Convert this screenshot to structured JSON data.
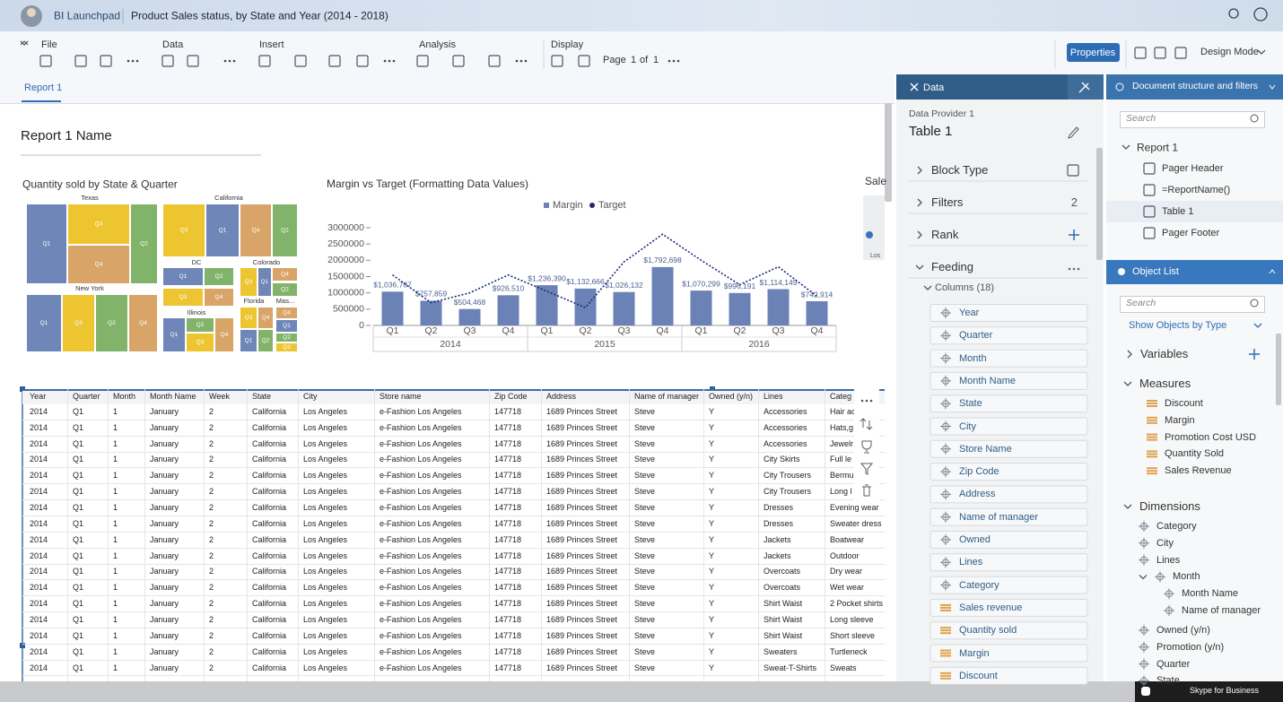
{
  "header": {
    "app": "BI Launchpad",
    "title": "Product Sales status, by State and Year (2014 - 2018)"
  },
  "toolbar": {
    "groups": [
      "File",
      "Data",
      "Insert",
      "Analysis",
      "Display"
    ],
    "page": {
      "label": "Page",
      "current": 1,
      "of": "of",
      "total": 1
    },
    "properties": "Properties",
    "mode": "Design Mode"
  },
  "tab": "Report 1",
  "report_title": "Report 1 Name",
  "treemap": {
    "title": "Quantity sold by State & Quarter",
    "colors": {
      "Q1": "#6f86b8",
      "Q2": "#82b36b",
      "Q3": "#edc531",
      "Q4": "#d9a467"
    },
    "groups": [
      {
        "name": "Texas",
        "cells": [
          "Q1",
          "Q3",
          "Q4",
          "Q2"
        ]
      },
      {
        "name": "New York",
        "cells": [
          "Q1",
          "Q3",
          "Q2",
          "Q4"
        ]
      },
      {
        "name": "California",
        "cells": [
          "Q3",
          "Q1",
          "Q4",
          "Q2"
        ]
      },
      {
        "name": "DC",
        "cells": [
          "Q1",
          "Q2",
          "Q3",
          "Q4"
        ]
      },
      {
        "name": "Colorado",
        "cells": [
          "Q3",
          "Q1",
          "Q4",
          "Q2"
        ]
      },
      {
        "name": "Illinois",
        "cells": [
          "Q1",
          "Q2",
          "Q3",
          "Q4"
        ]
      },
      {
        "name": "Florida",
        "cells": [
          "Q3",
          "Q4",
          "Q1",
          "Q2"
        ]
      },
      {
        "name": "Mas...",
        "cells": [
          "Q4",
          "Q1",
          "Q2",
          "Q3"
        ]
      }
    ]
  },
  "chart_data": {
    "type": "bar",
    "title": "Margin vs Target (Formatting Data Values)",
    "categories": [
      "Q1",
      "Q2",
      "Q3",
      "Q4",
      "Q1",
      "Q2",
      "Q3",
      "Q4",
      "Q1",
      "Q2",
      "Q3",
      "Q4"
    ],
    "groups": [
      "2014",
      "2015",
      "2016"
    ],
    "series": [
      {
        "name": "Margin",
        "type": "bar",
        "color": "#6a82b6",
        "values": [
          1036787,
          757859,
          504468,
          926510,
          1236390,
          1132666,
          1026132,
          1792698,
          1070299,
          996191,
          1114149,
          742914
        ],
        "value_labels": [
          "$1,036,787",
          "$757,859",
          "$504,468",
          "$926,510",
          "$1,236,390",
          "$1,132,666",
          "$1,026,132",
          "$1,792,698",
          "$1,070,299",
          "$996,191",
          "$1,114,149",
          "$742,914"
        ]
      },
      {
        "name": "Target",
        "type": "line",
        "color": "#1c2a78",
        "values": [
          1550000,
          700000,
          1000000,
          1550000,
          1050000,
          550000,
          1950000,
          2800000,
          2000000,
          1250000,
          1800000,
          900000
        ]
      }
    ],
    "ylim": [
      0,
      3000000
    ],
    "yticks": [
      0,
      500000,
      1000000,
      1500000,
      2000000,
      2500000,
      3000000
    ],
    "grid": false,
    "legend": "top"
  },
  "partial_chart": {
    "title": "Sale",
    "label": "Los"
  },
  "table": {
    "columns": [
      "Year",
      "Quarter",
      "Month",
      "Month Name",
      "Week",
      "State",
      "City",
      "Store name",
      "Zip Code",
      "Address",
      "Name of manager",
      "Owned (y/n)",
      "Lines",
      "Categ"
    ],
    "rows": [
      [
        2014,
        "Q1",
        1,
        "January",
        2,
        "California",
        "Los Angeles",
        "e-Fashion Los Angeles",
        147718,
        "1689 Princes Street",
        "Steve",
        "Y",
        "Accessories",
        "Hair ac"
      ],
      [
        2014,
        "Q1",
        1,
        "January",
        2,
        "California",
        "Los Angeles",
        "e-Fashion Los Angeles",
        147718,
        "1689 Princes Street",
        "Steve",
        "Y",
        "Accessories",
        "Hats,g"
      ],
      [
        2014,
        "Q1",
        1,
        "January",
        2,
        "California",
        "Los Angeles",
        "e-Fashion Los Angeles",
        147718,
        "1689 Princes Street",
        "Steve",
        "Y",
        "Accessories",
        "Jewelr"
      ],
      [
        2014,
        "Q1",
        1,
        "January",
        2,
        "California",
        "Los Angeles",
        "e-Fashion Los Angeles",
        147718,
        "1689 Princes Street",
        "Steve",
        "Y",
        "City Skirts",
        "Full le"
      ],
      [
        2014,
        "Q1",
        1,
        "January",
        2,
        "California",
        "Los Angeles",
        "e-Fashion Los Angeles",
        147718,
        "1689 Princes Street",
        "Steve",
        "Y",
        "City Trousers",
        "Bermu"
      ],
      [
        2014,
        "Q1",
        1,
        "January",
        2,
        "California",
        "Los Angeles",
        "e-Fashion Los Angeles",
        147718,
        "1689 Princes Street",
        "Steve",
        "Y",
        "City Trousers",
        "Long l"
      ],
      [
        2014,
        "Q1",
        1,
        "January",
        2,
        "California",
        "Los Angeles",
        "e-Fashion Los Angeles",
        147718,
        "1689 Princes Street",
        "Steve",
        "Y",
        "Dresses",
        "Evening wear"
      ],
      [
        2014,
        "Q1",
        1,
        "January",
        2,
        "California",
        "Los Angeles",
        "e-Fashion Los Angeles",
        147718,
        "1689 Princes Street",
        "Steve",
        "Y",
        "Dresses",
        "Sweater dress"
      ],
      [
        2014,
        "Q1",
        1,
        "January",
        2,
        "California",
        "Los Angeles",
        "e-Fashion Los Angeles",
        147718,
        "1689 Princes Street",
        "Steve",
        "Y",
        "Jackets",
        "Boatwear"
      ],
      [
        2014,
        "Q1",
        1,
        "January",
        2,
        "California",
        "Los Angeles",
        "e-Fashion Los Angeles",
        147718,
        "1689 Princes Street",
        "Steve",
        "Y",
        "Jackets",
        "Outdoor"
      ],
      [
        2014,
        "Q1",
        1,
        "January",
        2,
        "California",
        "Los Angeles",
        "e-Fashion Los Angeles",
        147718,
        "1689 Princes Street",
        "Steve",
        "Y",
        "Overcoats",
        "Dry wear"
      ],
      [
        2014,
        "Q1",
        1,
        "January",
        2,
        "California",
        "Los Angeles",
        "e-Fashion Los Angeles",
        147718,
        "1689 Princes Street",
        "Steve",
        "Y",
        "Overcoats",
        "Wet wear"
      ],
      [
        2014,
        "Q1",
        1,
        "January",
        2,
        "California",
        "Los Angeles",
        "e-Fashion Los Angeles",
        147718,
        "1689 Princes Street",
        "Steve",
        "Y",
        "Shirt Waist",
        "2 Pocket shirts"
      ],
      [
        2014,
        "Q1",
        1,
        "January",
        2,
        "California",
        "Los Angeles",
        "e-Fashion Los Angeles",
        147718,
        "1689 Princes Street",
        "Steve",
        "Y",
        "Shirt Waist",
        "Long sleeve"
      ],
      [
        2014,
        "Q1",
        1,
        "January",
        2,
        "California",
        "Los Angeles",
        "e-Fashion Los Angeles",
        147718,
        "1689 Princes Street",
        "Steve",
        "Y",
        "Shirt Waist",
        "Short sleeve"
      ],
      [
        2014,
        "Q1",
        1,
        "January",
        2,
        "California",
        "Los Angeles",
        "e-Fashion Los Angeles",
        147718,
        "1689 Princes Street",
        "Steve",
        "Y",
        "Sweaters",
        "Turtleneck"
      ],
      [
        2014,
        "Q1",
        1,
        "January",
        2,
        "California",
        "Los Angeles",
        "e-Fashion Los Angeles",
        147718,
        "1689 Princes Street",
        "Steve",
        "Y",
        "Sweat-T-Shirts",
        "Sweats"
      ]
    ]
  },
  "data_panel": {
    "title": "Data",
    "provider": "Data Provider 1",
    "block": "Table 1",
    "sections": [
      "Block Type",
      "Filters",
      "Rank",
      "Feeding"
    ],
    "filters_count": 2,
    "columns_label": "Columns (18)",
    "dimensions": [
      "Year",
      "Quarter",
      "Month",
      "Month Name",
      "State",
      "City",
      "Store Name",
      "Zip Code",
      "Address",
      "Name of manager",
      "Owned",
      "Lines",
      "Category"
    ],
    "measures": [
      "Sales revenue",
      "Quantity sold",
      "Margin",
      "Discount"
    ]
  },
  "structure_panel": {
    "title": "Document structure and filters",
    "search": "Search",
    "tree": {
      "root": "Report 1",
      "children": [
        "Pager Header",
        "=ReportName()",
        "Table 1",
        "Pager Footer"
      ]
    }
  },
  "object_list": {
    "title": "Object List",
    "search": "Search",
    "filter": "Show Objects by Type",
    "variables": "Variables",
    "measures_label": "Measures",
    "measures": [
      "Discount",
      "Margin",
      "Promotion Cost USD",
      "Quantity Sold",
      "Sales Revenue"
    ],
    "dimensions_label": "Dimensions",
    "dimensions": [
      "Category",
      "City",
      "Lines",
      {
        "name": "Month",
        "children": [
          "Month Name",
          "Name of manager"
        ]
      },
      "Owned (y/n)",
      "Promotion (y/n)",
      "Quarter",
      "State"
    ]
  },
  "taskbar": "Skype for Business"
}
